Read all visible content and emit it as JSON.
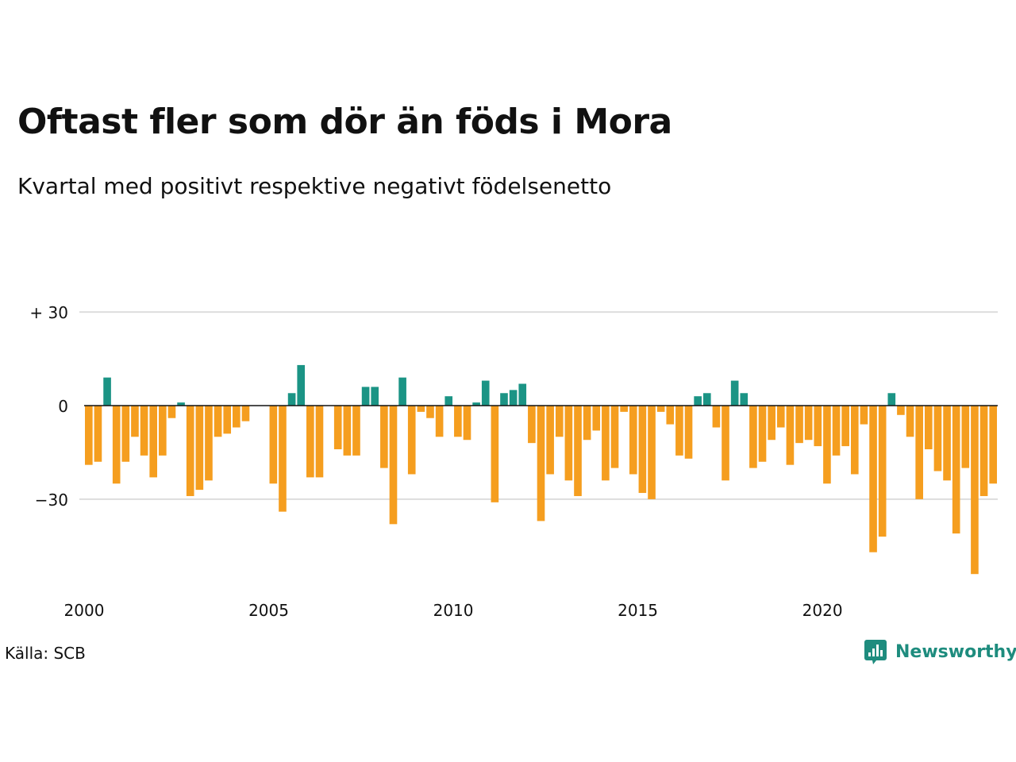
{
  "header": {
    "title": "Oftast fler som dör än föds i Mora",
    "subtitle": "Kvartal med positivt respektive negativt födelsenetto"
  },
  "footer": {
    "source": "Källa: SCB",
    "brand": "Newsworthy"
  },
  "colors": {
    "positive": "#1b9485",
    "negative": "#f59e1f",
    "grid": "#dddddd",
    "zero_line": "#111111",
    "brand": "#1e8c7e"
  },
  "icons": {
    "brand_logo": "newsworthy-logo-icon"
  },
  "chart_data": {
    "type": "bar",
    "title": "Oftast fler som dör än föds i Mora",
    "subtitle": "Kvartal med positivt respektive negativt födelsenetto",
    "xlabel": "",
    "ylabel": "",
    "x_start": "2000 Q1",
    "x_ticks": [
      "2000",
      "2005",
      "2010",
      "2015",
      "2020"
    ],
    "y_ticks": [
      {
        "value": 30,
        "label": "+ 30"
      },
      {
        "value": 0,
        "label": "0"
      },
      {
        "value": -30,
        "label": "−30"
      }
    ],
    "ylim": [
      -56,
      30
    ],
    "grid": true,
    "legend": "none",
    "values": [
      -19,
      -18,
      9,
      -25,
      -18,
      -10,
      -16,
      -23,
      -16,
      -4,
      1,
      -29,
      -27,
      -24,
      -10,
      -9,
      -7,
      -5,
      0,
      0,
      -25,
      -34,
      4,
      13,
      -23,
      -23,
      0,
      -14,
      -16,
      -16,
      6,
      6,
      -20,
      -38,
      9,
      -22,
      -2,
      -4,
      -10,
      3,
      -10,
      -11,
      1,
      8,
      -31,
      4,
      5,
      7,
      -12,
      -37,
      -22,
      -10,
      -24,
      -29,
      -11,
      -8,
      -24,
      -20,
      -2,
      -22,
      -28,
      -30,
      -2,
      -6,
      -16,
      -17,
      3,
      4,
      -7,
      -24,
      8,
      4,
      -20,
      -18,
      -11,
      -7,
      -19,
      -12,
      -11,
      -13,
      -25,
      -16,
      -13,
      -22,
      -6,
      -47,
      -42,
      4,
      -3,
      -10,
      -30,
      -14,
      -21,
      -24,
      -41,
      -20,
      -54,
      -29,
      -25
    ]
  }
}
